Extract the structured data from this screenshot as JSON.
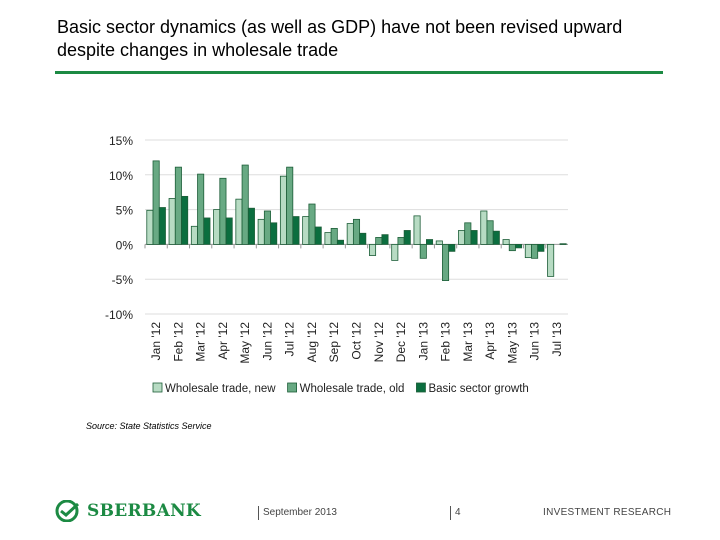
{
  "title": "Basic sector dynamics (as well as GDP) have not been revised upward despite changes in wholesale trade",
  "source": "Source: State Statistics Service",
  "footer": {
    "logo": "SBERBANK",
    "date": "September 2013",
    "page": "4",
    "section": "INVESTMENT RESEARCH"
  },
  "colors": {
    "new": "#b7dbc3",
    "old": "#68a983",
    "basic": "#0b6e3f",
    "rule": "#1c8a43"
  },
  "chart_data": {
    "type": "bar",
    "categories": [
      "Jan '12",
      "Feb '12",
      "Mar '12",
      "Apr '12",
      "May '12",
      "Jun '12",
      "Jul '12",
      "Aug '12",
      "Sep '12",
      "Oct '12",
      "Nov '12",
      "Dec '12",
      "Jan '13",
      "Feb '13",
      "Mar '13",
      "Apr '13",
      "May '13",
      "Jun '13",
      "Jul '13"
    ],
    "series": [
      {
        "name": "Wholesale trade, new",
        "values": [
          4.9,
          6.6,
          2.6,
          5.0,
          6.5,
          3.6,
          9.8,
          4.0,
          1.7,
          3.0,
          -1.6,
          -2.3,
          4.1,
          0.5,
          2.0,
          4.8,
          0.7,
          -1.9,
          -4.6
        ]
      },
      {
        "name": "Wholesale trade, old",
        "values": [
          12.0,
          11.1,
          10.1,
          9.5,
          11.4,
          4.8,
          11.1,
          5.8,
          2.3,
          3.6,
          1.0,
          1.0,
          -2.0,
          -5.2,
          3.1,
          3.4,
          -0.9,
          -2.0,
          null
        ]
      },
      {
        "name": "Basic sector growth",
        "values": [
          5.3,
          6.9,
          3.8,
          3.8,
          5.2,
          3.1,
          4.0,
          2.5,
          0.6,
          1.6,
          1.4,
          2.0,
          0.7,
          -1.0,
          2.0,
          1.9,
          -0.5,
          -1.0,
          0.1
        ]
      }
    ],
    "yticks": [
      "15%",
      "10%",
      "5%",
      "0%",
      "-5%",
      "-10%"
    ],
    "ylim": [
      -10,
      15
    ],
    "grid": true,
    "legend": "bottom"
  }
}
